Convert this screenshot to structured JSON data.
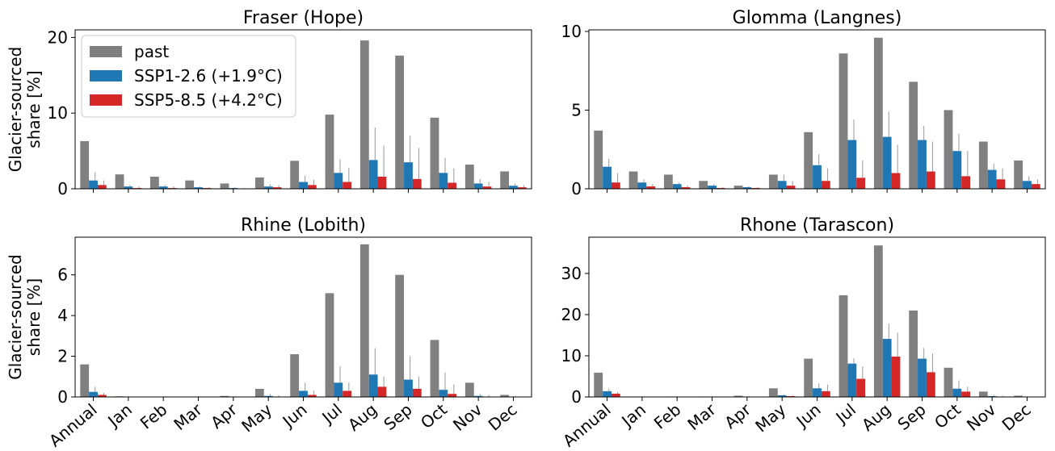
{
  "figure": {
    "ylabel": "Glacier-sourced\nshare [%]",
    "legend": {
      "placement": "upper-left of first panel",
      "entries": [
        {
          "label": "past",
          "color": "#808080"
        },
        {
          "label": "SSP1-2.6 (+1.9°C)",
          "color": "#1f77b4"
        },
        {
          "label": "SSP5-8.5 (+4.2°C)",
          "color": "#d62728"
        }
      ]
    }
  },
  "chart_data": [
    {
      "type": "bar",
      "title": "Fraser (Hope)",
      "categories": [
        "Annual",
        "Jan",
        "Feb",
        "Mar",
        "Apr",
        "May",
        "Jun",
        "Jul",
        "Aug",
        "Sep",
        "Oct",
        "Nov",
        "Dec"
      ],
      "ylim": [
        0,
        21
      ],
      "yticks": [
        0,
        10,
        20
      ],
      "series": [
        {
          "name": "past",
          "values": [
            6.3,
            1.9,
            1.6,
            1.1,
            0.7,
            1.5,
            3.7,
            9.8,
            19.6,
            17.6,
            9.4,
            3.2,
            2.3
          ]
        },
        {
          "name": "SSP1-2.6 (+1.9°C)",
          "values": [
            1.1,
            0.3,
            0.3,
            0.2,
            0.1,
            0.3,
            0.9,
            2.1,
            3.8,
            3.5,
            2.1,
            0.7,
            0.4
          ]
        },
        {
          "name": "SSP5-8.5 (+4.2°C)",
          "values": [
            0.5,
            0.1,
            0.1,
            0.1,
            0.05,
            0.2,
            0.5,
            0.9,
            1.6,
            1.3,
            0.8,
            0.3,
            0.2
          ]
        }
      ],
      "errors": [
        {
          "name": "SSP1-2.6 (+1.9°C)",
          "upper": [
            2.2,
            0.5,
            0.5,
            0.3,
            0.2,
            0.6,
            1.7,
            3.9,
            8.1,
            7.0,
            4.1,
            1.3,
            0.7
          ]
        },
        {
          "name": "SSP5-8.5 (+4.2°C)",
          "upper": [
            1.1,
            0.3,
            0.3,
            0.2,
            0.1,
            0.5,
            1.2,
            2.8,
            5.7,
            5.4,
            2.7,
            0.9,
            0.5
          ]
        }
      ],
      "show_xticklabels": false,
      "show_ylabel": true
    },
    {
      "type": "bar",
      "title": "Glomma (Langnes)",
      "categories": [
        "Annual",
        "Jan",
        "Feb",
        "Mar",
        "Apr",
        "May",
        "Jun",
        "Jul",
        "Aug",
        "Sep",
        "Oct",
        "Nov",
        "Dec"
      ],
      "ylim": [
        0,
        10.1
      ],
      "yticks": [
        0,
        5,
        10
      ],
      "series": [
        {
          "name": "past",
          "values": [
            3.7,
            1.1,
            0.9,
            0.5,
            0.2,
            0.9,
            3.6,
            8.6,
            9.6,
            6.8,
            5.0,
            3.0,
            1.8
          ]
        },
        {
          "name": "SSP1-2.6 (+1.9°C)",
          "values": [
            1.4,
            0.4,
            0.3,
            0.2,
            0.1,
            0.5,
            1.5,
            3.1,
            3.3,
            3.1,
            2.4,
            1.2,
            0.5
          ]
        },
        {
          "name": "SSP5-8.5 (+4.2°C)",
          "values": [
            0.4,
            0.15,
            0.1,
            0.05,
            0.05,
            0.2,
            0.5,
            0.7,
            1.0,
            1.1,
            0.8,
            0.6,
            0.3
          ]
        }
      ],
      "errors": [
        {
          "name": "SSP1-2.6 (+1.9°C)",
          "upper": [
            1.9,
            0.6,
            0.4,
            0.3,
            0.15,
            0.9,
            2.2,
            4.4,
            4.9,
            4.0,
            3.5,
            1.6,
            0.8
          ]
        },
        {
          "name": "SSP5-8.5 (+4.2°C)",
          "upper": [
            1.0,
            0.3,
            0.2,
            0.1,
            0.1,
            0.5,
            1.3,
            1.8,
            2.8,
            3.0,
            2.4,
            1.3,
            0.6
          ]
        }
      ],
      "show_xticklabels": false,
      "show_ylabel": false
    },
    {
      "type": "bar",
      "title": "Rhine (Lobith)",
      "categories": [
        "Annual",
        "Jan",
        "Feb",
        "Mar",
        "Apr",
        "May",
        "Jun",
        "Jul",
        "Aug",
        "Sep",
        "Oct",
        "Nov",
        "Dec"
      ],
      "ylim": [
        0,
        7.85
      ],
      "yticks": [
        0,
        2,
        4,
        6
      ],
      "series": [
        {
          "name": "past",
          "values": [
            1.6,
            0.03,
            0.02,
            0.02,
            0.05,
            0.4,
            2.1,
            5.1,
            7.5,
            6.0,
            2.8,
            0.7,
            0.1
          ]
        },
        {
          "name": "SSP1-2.6 (+1.9°C)",
          "values": [
            0.25,
            0.01,
            0.01,
            0.01,
            0.01,
            0.05,
            0.3,
            0.7,
            1.1,
            0.85,
            0.35,
            0.05,
            0.01
          ]
        },
        {
          "name": "SSP5-8.5 (+4.2°C)",
          "values": [
            0.1,
            0.01,
            0.01,
            0.01,
            0.01,
            0.02,
            0.1,
            0.3,
            0.5,
            0.4,
            0.15,
            0.02,
            0.01
          ]
        }
      ],
      "errors": [
        {
          "name": "SSP1-2.6 (+1.9°C)",
          "upper": [
            0.5,
            0.02,
            0.02,
            0.02,
            0.03,
            0.15,
            0.7,
            1.5,
            2.4,
            2.0,
            1.2,
            0.15,
            0.03
          ]
        },
        {
          "name": "SSP5-8.5 (+4.2°C)",
          "upper": [
            0.2,
            0.02,
            0.02,
            0.02,
            0.02,
            0.08,
            0.3,
            0.7,
            1.0,
            1.0,
            0.6,
            0.1,
            0.02
          ]
        }
      ],
      "show_xticklabels": true,
      "show_ylabel": true
    },
    {
      "type": "bar",
      "title": "Rhone (Tarascon)",
      "categories": [
        "Annual",
        "Jan",
        "Feb",
        "Mar",
        "Apr",
        "May",
        "Jun",
        "Jul",
        "Aug",
        "Sep",
        "Oct",
        "Nov",
        "Dec"
      ],
      "ylim": [
        0,
        38.8
      ],
      "yticks": [
        0,
        10,
        20,
        30
      ],
      "series": [
        {
          "name": "past",
          "values": [
            5.9,
            0.1,
            0.1,
            0.1,
            0.3,
            2.1,
            9.3,
            24.7,
            36.8,
            21.0,
            7.1,
            1.3,
            0.3
          ]
        },
        {
          "name": "SSP1-2.6 (+1.9°C)",
          "values": [
            1.4,
            0.02,
            0.02,
            0.02,
            0.1,
            0.4,
            2.1,
            8.1,
            14.1,
            9.3,
            2.0,
            0.2,
            0.05
          ]
        },
        {
          "name": "SSP5-8.5 (+4.2°C)",
          "values": [
            0.8,
            0.01,
            0.01,
            0.01,
            0.05,
            0.2,
            1.4,
            4.4,
            9.8,
            6.0,
            1.3,
            0.1,
            0.02
          ]
        }
      ],
      "errors": [
        {
          "name": "SSP1-2.6 (+1.9°C)",
          "upper": [
            2.0,
            0.05,
            0.05,
            0.05,
            0.2,
            0.6,
            3.3,
            9.4,
            17.8,
            11.9,
            4.0,
            0.5,
            0.1
          ]
        },
        {
          "name": "SSP5-8.5 (+4.2°C)",
          "upper": [
            1.2,
            0.03,
            0.03,
            0.03,
            0.1,
            0.4,
            3.0,
            7.4,
            15.6,
            10.6,
            2.5,
            0.3,
            0.05
          ]
        }
      ],
      "show_xticklabels": true,
      "show_ylabel": false
    }
  ]
}
